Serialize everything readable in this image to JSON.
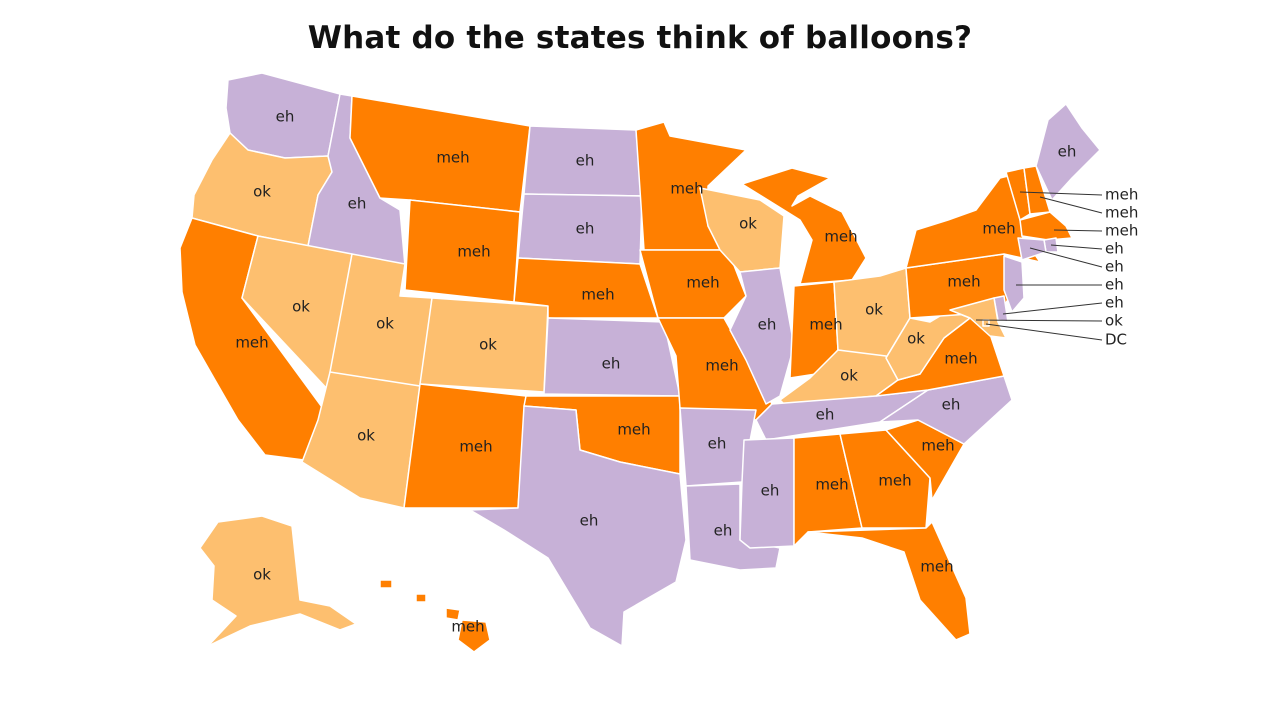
{
  "title": "What do the states think of balloons?",
  "categories": [
    {
      "key": "eh",
      "color": "#c7b1d7"
    },
    {
      "key": "meh",
      "color": "#ff7f00"
    },
    {
      "key": "ok",
      "color": "#fdbf6f"
    }
  ],
  "states": [
    {
      "id": "WA",
      "label": "eh",
      "category": "eh"
    },
    {
      "id": "OR",
      "label": "ok",
      "category": "ok"
    },
    {
      "id": "CA",
      "label": "meh",
      "category": "meh"
    },
    {
      "id": "ID",
      "label": "eh",
      "category": "eh"
    },
    {
      "id": "NV",
      "label": "ok",
      "category": "ok"
    },
    {
      "id": "MT",
      "label": "meh",
      "category": "meh"
    },
    {
      "id": "WY",
      "label": "meh",
      "category": "meh"
    },
    {
      "id": "UT",
      "label": "ok",
      "category": "ok"
    },
    {
      "id": "AZ",
      "label": "ok",
      "category": "ok"
    },
    {
      "id": "CO",
      "label": "ok",
      "category": "ok"
    },
    {
      "id": "NM",
      "label": "meh",
      "category": "meh"
    },
    {
      "id": "ND",
      "label": "eh",
      "category": "eh"
    },
    {
      "id": "SD",
      "label": "eh",
      "category": "eh"
    },
    {
      "id": "NE",
      "label": "meh",
      "category": "meh"
    },
    {
      "id": "KS",
      "label": "eh",
      "category": "eh"
    },
    {
      "id": "OK",
      "label": "meh",
      "category": "meh"
    },
    {
      "id": "TX",
      "label": "eh",
      "category": "eh"
    },
    {
      "id": "MN",
      "label": "meh",
      "category": "meh"
    },
    {
      "id": "IA",
      "label": "meh",
      "category": "meh"
    },
    {
      "id": "MO",
      "label": "meh",
      "category": "meh"
    },
    {
      "id": "AR",
      "label": "eh",
      "category": "eh"
    },
    {
      "id": "LA",
      "label": "eh",
      "category": "eh"
    },
    {
      "id": "WI",
      "label": "ok",
      "category": "ok"
    },
    {
      "id": "IL",
      "label": "eh",
      "category": "eh"
    },
    {
      "id": "MI",
      "label": "meh",
      "category": "meh"
    },
    {
      "id": "IN",
      "label": "meh",
      "category": "meh"
    },
    {
      "id": "OH",
      "label": "ok",
      "category": "ok"
    },
    {
      "id": "KY",
      "label": "ok",
      "category": "ok"
    },
    {
      "id": "TN",
      "label": "eh",
      "category": "eh"
    },
    {
      "id": "MS",
      "label": "eh",
      "category": "eh"
    },
    {
      "id": "AL",
      "label": "meh",
      "category": "meh"
    },
    {
      "id": "GA",
      "label": "meh",
      "category": "meh"
    },
    {
      "id": "FL",
      "label": "meh",
      "category": "meh"
    },
    {
      "id": "SC",
      "label": "meh",
      "category": "meh"
    },
    {
      "id": "NC",
      "label": "eh",
      "category": "eh"
    },
    {
      "id": "VA",
      "label": "meh",
      "category": "meh"
    },
    {
      "id": "WV",
      "label": "ok",
      "category": "ok"
    },
    {
      "id": "PA",
      "label": "meh",
      "category": "meh"
    },
    {
      "id": "NY",
      "label": "meh",
      "category": "meh"
    },
    {
      "id": "ME",
      "label": "eh",
      "category": "eh"
    },
    {
      "id": "AK",
      "label": "ok",
      "category": "ok"
    },
    {
      "id": "HI",
      "label": "meh",
      "category": "meh"
    },
    {
      "id": "VT",
      "label": "meh",
      "category": "meh"
    },
    {
      "id": "NH",
      "label": "meh",
      "category": "meh"
    },
    {
      "id": "MA",
      "label": "meh",
      "category": "meh"
    },
    {
      "id": "RI",
      "label": "eh",
      "category": "eh"
    },
    {
      "id": "CT",
      "label": "eh",
      "category": "eh"
    },
    {
      "id": "NJ",
      "label": "eh",
      "category": "eh"
    },
    {
      "id": "DE",
      "label": "eh",
      "category": "eh"
    },
    {
      "id": "MD",
      "label": "ok",
      "category": "ok"
    },
    {
      "id": "DC",
      "label": "DC",
      "category": "ok"
    }
  ]
}
